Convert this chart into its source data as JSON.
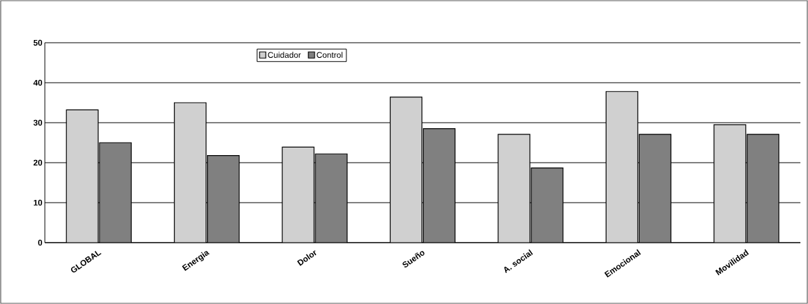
{
  "chart_data": {
    "type": "bar",
    "categories": [
      "GLOBAL",
      "Energia",
      "Dolor",
      "Sueño",
      "A. social",
      "Emocional",
      "Movilidad"
    ],
    "series": [
      {
        "name": "Cuidador",
        "color": "#d0d0d0",
        "values": [
          33.2,
          35,
          23.9,
          36.4,
          27.1,
          37.8,
          29.5
        ]
      },
      {
        "name": "Control",
        "color": "#808080",
        "values": [
          25,
          21.8,
          22.2,
          28.5,
          18.7,
          27.1,
          27.1
        ]
      }
    ],
    "ylim": [
      0,
      50
    ],
    "yticks": [
      0,
      10,
      20,
      30,
      40,
      50
    ],
    "grid": "y",
    "legend": "top"
  }
}
